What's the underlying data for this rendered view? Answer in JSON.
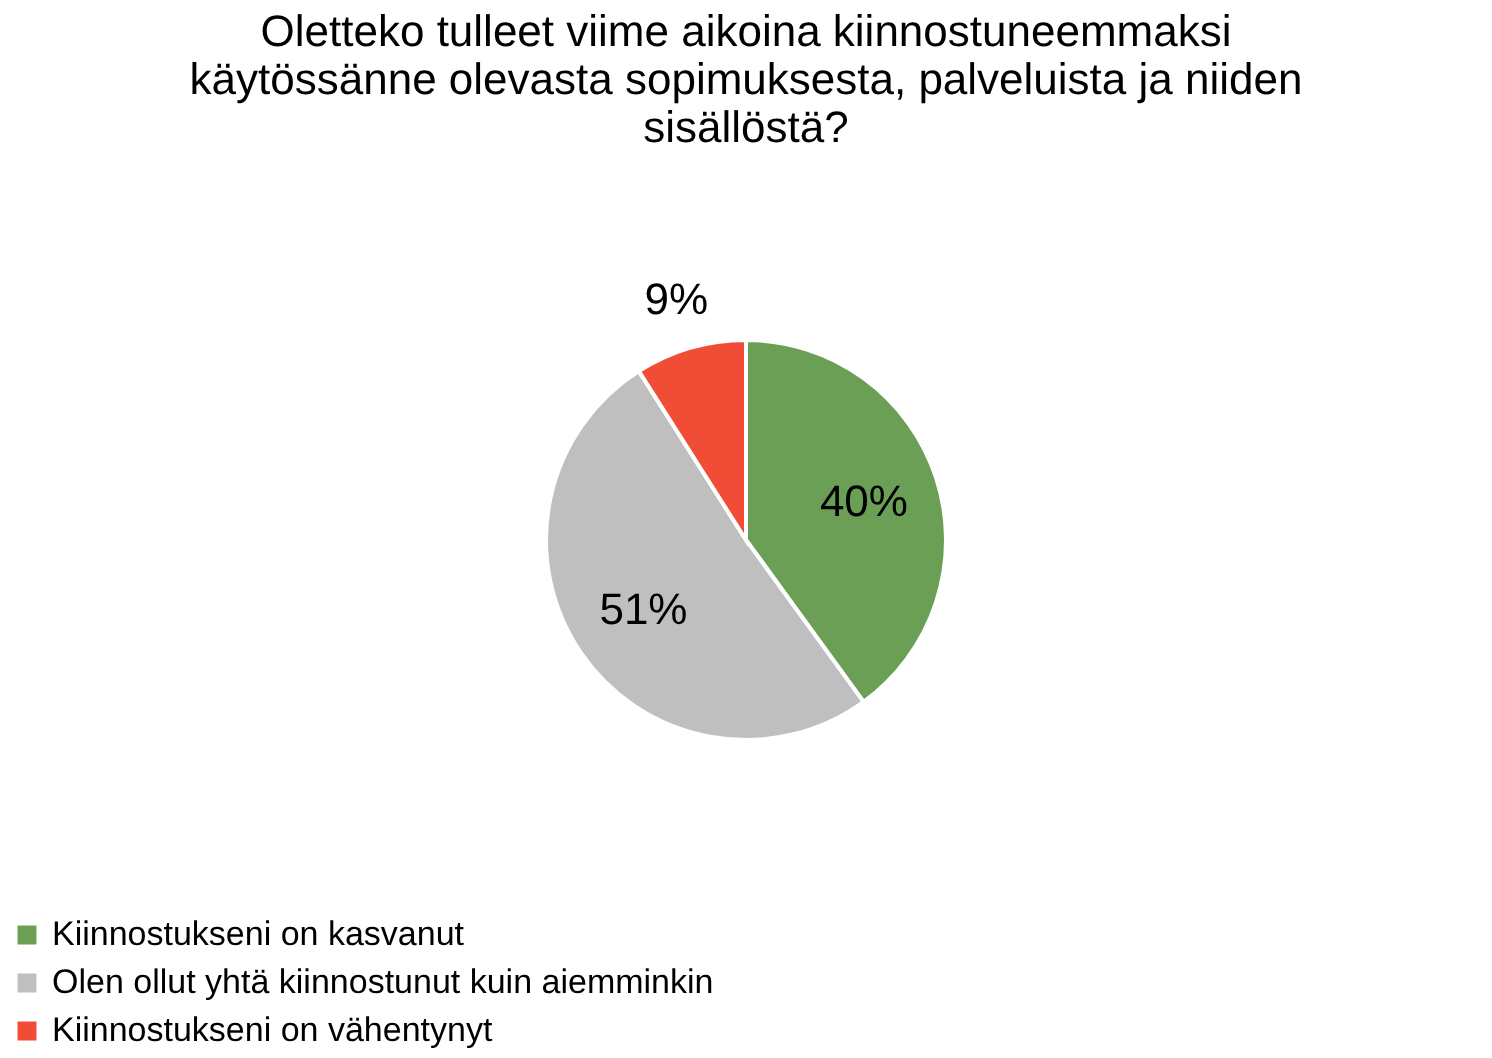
{
  "chart_data": {
    "type": "pie",
    "title": "Oletteko tulleet viime aikoina kiinnostuneemmaksi\nkäytössänne olevasta sopimuksesta, palveluista ja niiden\nsisällöstä?",
    "categories": [
      "Kiinnostukseni on kasvanut",
      "Olen ollut yhtä kiinnostunut kuin aiemminkin",
      "Kiinnostukseni on vähentynyt"
    ],
    "values": [
      40,
      51,
      9
    ],
    "value_labels": [
      "40%",
      "51%",
      "9%"
    ],
    "colors": [
      "#6a9f55",
      "#bfbfbf",
      "#f04c36"
    ],
    "legend": "bottom"
  }
}
